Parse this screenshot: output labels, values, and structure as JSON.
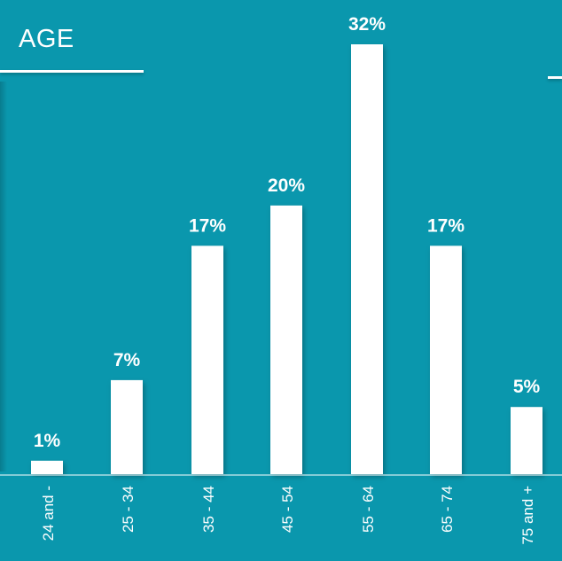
{
  "chart_data": {
    "type": "bar",
    "title": "AGE",
    "categories": [
      "24 and -",
      "25 - 34",
      "35 - 44",
      "45 - 54",
      "55 - 64",
      "65 - 74",
      "75 and +"
    ],
    "values": [
      1,
      7,
      17,
      20,
      32,
      17,
      5
    ],
    "value_labels": [
      "1%",
      "7%",
      "17%",
      "20%",
      "32%",
      "17%",
      "5%"
    ],
    "ylim": [
      0,
      32
    ],
    "grid": false,
    "legend": "none",
    "colors": {
      "background": "#0a97ad",
      "bar": "#ffffff",
      "text": "#ffffff"
    }
  }
}
